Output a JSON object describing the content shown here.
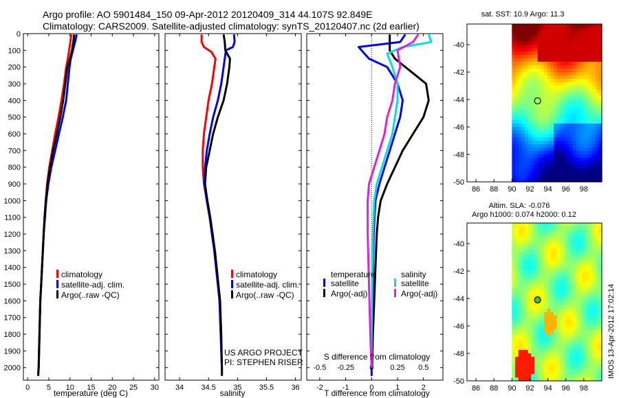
{
  "header": {
    "line1": "Argo profile: AO 5901484_150 09-Apr-2012 20120409_314 44.107S 92.849E",
    "line2": "Climatology: CARS2009. Satellite-adjusted climatology: synTS_20120407.nc (2d earlier)"
  },
  "footer_stamp": "IMOS 13-Apr-2012 17:02:14",
  "project_credit": {
    "line1": "US ARGO PROJECT",
    "line2": "PI: STEPHEN RISER"
  },
  "colors": {
    "climatology": "#ff0000",
    "satellite": "#0000ff",
    "argo": "#000000",
    "salinity_sat": "#00e0e0",
    "salinity_argo": "#e020e0"
  },
  "chart_data": [
    {
      "type": "line",
      "id": "temperature",
      "xlabel": "temperature (deg C)",
      "xlim": [
        -1,
        31
      ],
      "xticks": [
        "0",
        "5",
        "10",
        "15",
        "20",
        "25",
        "30"
      ],
      "xtick_values": [
        0,
        5,
        10,
        15,
        20,
        25,
        30
      ],
      "ylim": [
        2075,
        0
      ],
      "yticks": [
        "0",
        "100",
        "200",
        "300",
        "400",
        "500",
        "600",
        "700",
        "800",
        "900",
        "1000",
        "1100",
        "1200",
        "1300",
        "1400",
        "1500",
        "1600",
        "1700",
        "1800",
        "1900",
        "2000"
      ],
      "ytick_values": [
        0,
        100,
        200,
        300,
        400,
        500,
        600,
        700,
        800,
        900,
        1000,
        1100,
        1200,
        1300,
        1400,
        1500,
        1600,
        1700,
        1800,
        1900,
        2000
      ],
      "legend": [
        "climatology",
        "satellite-adj. clim.",
        "Argo(..raw -QC)"
      ],
      "series": [
        {
          "name": "climatology",
          "color": "#ff0000",
          "points": [
            [
              10.3,
              5
            ],
            [
              10.1,
              50
            ],
            [
              9.8,
              100
            ],
            [
              9.5,
              150
            ],
            [
              9.1,
              200
            ],
            [
              8.6,
              300
            ],
            [
              8.0,
              400
            ],
            [
              7.3,
              500
            ],
            [
              6.5,
              600
            ],
            [
              5.8,
              700
            ],
            [
              5.1,
              800
            ],
            [
              4.6,
              900
            ],
            [
              4.3,
              1000
            ],
            [
              4.0,
              1100
            ],
            [
              3.8,
              1200
            ],
            [
              3.6,
              1300
            ],
            [
              3.4,
              1400
            ],
            [
              3.2,
              1500
            ],
            [
              3.0,
              1600
            ],
            [
              2.8,
              1800
            ],
            [
              2.6,
              2000
            ],
            [
              2.5,
              2050
            ]
          ]
        },
        {
          "name": "satellite-adj. clim.",
          "color": "#0000ff",
          "points": [
            [
              11.6,
              5
            ],
            [
              11.2,
              50
            ],
            [
              10.7,
              100
            ],
            [
              10.2,
              150
            ],
            [
              9.9,
              200
            ],
            [
              9.5,
              300
            ],
            [
              9.1,
              400
            ],
            [
              8.3,
              500
            ],
            [
              7.4,
              600
            ],
            [
              6.5,
              700
            ],
            [
              5.6,
              800
            ],
            [
              4.9,
              900
            ],
            [
              4.4,
              1000
            ],
            [
              4.1,
              1100
            ],
            [
              3.8,
              1200
            ],
            [
              3.6,
              1300
            ],
            [
              3.4,
              1400
            ],
            [
              3.2,
              1500
            ],
            [
              3.0,
              1600
            ],
            [
              2.8,
              1800
            ],
            [
              2.6,
              2000
            ],
            [
              2.5,
              2050
            ]
          ]
        },
        {
          "name": "Argo(..raw -QC)",
          "color": "#000000",
          "points": [
            [
              11.0,
              5
            ],
            [
              10.8,
              50
            ],
            [
              10.5,
              100
            ],
            [
              10.0,
              150
            ],
            [
              9.4,
              200
            ],
            [
              8.9,
              300
            ],
            [
              8.4,
              400
            ],
            [
              7.7,
              500
            ],
            [
              6.9,
              600
            ],
            [
              6.0,
              700
            ],
            [
              5.3,
              800
            ],
            [
              4.7,
              900
            ],
            [
              4.3,
              1000
            ],
            [
              4.0,
              1100
            ],
            [
              3.8,
              1200
            ],
            [
              3.6,
              1300
            ],
            [
              3.4,
              1400
            ],
            [
              3.2,
              1500
            ],
            [
              3.0,
              1600
            ],
            [
              2.8,
              1800
            ],
            [
              2.6,
              2000
            ],
            [
              2.5,
              2040
            ]
          ]
        }
      ]
    },
    {
      "type": "line",
      "id": "salinity",
      "xlabel": "salinity",
      "xlim": [
        33.75,
        36.1
      ],
      "xticks": [
        "34",
        "34.5",
        "35",
        "35.5",
        "36"
      ],
      "xtick_values": [
        34,
        34.5,
        35,
        35.5,
        36
      ],
      "ylim": [
        2075,
        0
      ],
      "legend": [
        "climatology",
        "satellite-adj. clim.",
        "Argo(..raw -QC)"
      ],
      "series": [
        {
          "name": "climatology",
          "color": "#ff0000",
          "points": [
            [
              34.38,
              5
            ],
            [
              34.38,
              50
            ],
            [
              34.42,
              80
            ],
            [
              34.55,
              110
            ],
            [
              34.62,
              150
            ],
            [
              34.6,
              200
            ],
            [
              34.56,
              300
            ],
            [
              34.5,
              400
            ],
            [
              34.46,
              500
            ],
            [
              34.42,
              600
            ],
            [
              34.4,
              700
            ],
            [
              34.4,
              800
            ],
            [
              34.42,
              900
            ],
            [
              34.47,
              1000
            ],
            [
              34.52,
              1100
            ],
            [
              34.56,
              1200
            ],
            [
              34.6,
              1300
            ],
            [
              34.63,
              1400
            ],
            [
              34.66,
              1500
            ],
            [
              34.69,
              1600
            ],
            [
              34.71,
              1800
            ],
            [
              34.73,
              2000
            ],
            [
              34.73,
              2050
            ]
          ]
        },
        {
          "name": "satellite-adj. clim.",
          "color": "#0000ff",
          "points": [
            [
              34.94,
              5
            ],
            [
              34.95,
              50
            ],
            [
              34.92,
              80
            ],
            [
              34.8,
              100
            ],
            [
              34.78,
              150
            ],
            [
              34.76,
              200
            ],
            [
              34.72,
              300
            ],
            [
              34.66,
              400
            ],
            [
              34.58,
              500
            ],
            [
              34.52,
              600
            ],
            [
              34.47,
              700
            ],
            [
              34.44,
              800
            ],
            [
              34.43,
              900
            ],
            [
              34.47,
              1000
            ],
            [
              34.52,
              1100
            ],
            [
              34.56,
              1200
            ],
            [
              34.6,
              1300
            ],
            [
              34.63,
              1400
            ],
            [
              34.66,
              1500
            ],
            [
              34.69,
              1600
            ],
            [
              34.71,
              1800
            ],
            [
              34.73,
              2000
            ],
            [
              34.73,
              2050
            ]
          ]
        },
        {
          "name": "Argo(..raw -QC)",
          "color": "#000000",
          "points": [
            [
              34.76,
              5
            ],
            [
              34.78,
              50
            ],
            [
              34.79,
              100
            ],
            [
              34.87,
              150
            ],
            [
              34.86,
              200
            ],
            [
              34.82,
              300
            ],
            [
              34.76,
              400
            ],
            [
              34.66,
              500
            ],
            [
              34.58,
              600
            ],
            [
              34.52,
              700
            ],
            [
              34.46,
              800
            ],
            [
              34.44,
              900
            ],
            [
              34.48,
              1000
            ],
            [
              34.53,
              1100
            ],
            [
              34.57,
              1200
            ],
            [
              34.61,
              1300
            ],
            [
              34.64,
              1400
            ],
            [
              34.67,
              1500
            ],
            [
              34.7,
              1600
            ],
            [
              34.72,
              1800
            ],
            [
              34.73,
              2000
            ],
            [
              34.73,
              2040
            ]
          ]
        }
      ]
    },
    {
      "type": "line",
      "id": "difference",
      "xlabel": "T difference from climatology",
      "xlabel_top": "S difference from climatology",
      "xlim": [
        -2.5,
        2.75
      ],
      "xticks": [
        "-2",
        "-1",
        "0",
        "1",
        "2"
      ],
      "xtick_values": [
        -2,
        -1,
        0,
        1,
        2
      ],
      "top_ticks": [
        "-0.5",
        "-0.25",
        "0",
        "0.25",
        "0.5"
      ],
      "top_tick_values": [
        -2,
        -1,
        0,
        1,
        2
      ],
      "ylim": [
        2075,
        0
      ],
      "legend_groups": [
        {
          "title": "temperature",
          "items": [
            "satellite",
            "Argo(-adj)"
          ]
        },
        {
          "title": "salinity",
          "items": [
            "satellite",
            "Argo(-adj)"
          ]
        }
      ],
      "series": [
        {
          "name": "temperature satellite",
          "color": "#0000ff",
          "points": [
            [
              1.3,
              5
            ],
            [
              1.1,
              50
            ],
            [
              -0.5,
              80
            ],
            [
              -0.1,
              150
            ],
            [
              0.6,
              200
            ],
            [
              1.0,
              300
            ],
            [
              1.2,
              400
            ],
            [
              1.1,
              500
            ],
            [
              0.9,
              600
            ],
            [
              0.7,
              700
            ],
            [
              0.5,
              800
            ],
            [
              0.3,
              900
            ],
            [
              0.15,
              1000
            ],
            [
              0.08,
              1200
            ],
            [
              0.05,
              1500
            ],
            [
              0.02,
              1800
            ],
            [
              0.0,
              2000
            ],
            [
              0.0,
              2050
            ]
          ]
        },
        {
          "name": "temperature Argo(-adj)",
          "color": "#000000",
          "points": [
            [
              0.7,
              5
            ],
            [
              0.7,
              50
            ],
            [
              0.7,
              100
            ],
            [
              0.9,
              150
            ],
            [
              1.7,
              250
            ],
            [
              2.1,
              300
            ],
            [
              2.2,
              400
            ],
            [
              2.0,
              500
            ],
            [
              1.6,
              600
            ],
            [
              1.2,
              700
            ],
            [
              0.9,
              800
            ],
            [
              0.6,
              900
            ],
            [
              0.35,
              1000
            ],
            [
              0.25,
              1100
            ],
            [
              0.2,
              1200
            ],
            [
              0.15,
              1400
            ],
            [
              0.1,
              1600
            ],
            [
              0.05,
              1800
            ],
            [
              0.02,
              2000
            ]
          ]
        },
        {
          "name": "salinity satellite",
          "color": "#00e0e0",
          "points": [
            [
              2.2,
              5
            ],
            [
              2.3,
              50
            ],
            [
              1.2,
              80
            ],
            [
              0.6,
              120
            ],
            [
              0.8,
              200
            ],
            [
              1.0,
              300
            ],
            [
              1.0,
              400
            ],
            [
              0.9,
              500
            ],
            [
              0.8,
              600
            ],
            [
              0.6,
              700
            ],
            [
              0.4,
              800
            ],
            [
              0.2,
              900
            ],
            [
              0.1,
              1000
            ],
            [
              0.05,
              1200
            ],
            [
              0.02,
              1500
            ],
            [
              0.0,
              1800
            ],
            [
              0.0,
              2000
            ]
          ]
        },
        {
          "name": "salinity Argo(-adj)",
          "color": "#e020e0",
          "points": [
            [
              1.8,
              5
            ],
            [
              1.6,
              50
            ],
            [
              1.0,
              100
            ],
            [
              1.1,
              200
            ],
            [
              0.9,
              300
            ],
            [
              0.8,
              400
            ],
            [
              0.6,
              500
            ],
            [
              0.5,
              600
            ],
            [
              0.3,
              700
            ],
            [
              0.1,
              800
            ],
            [
              -0.1,
              900
            ],
            [
              -0.15,
              1000
            ],
            [
              -0.15,
              1200
            ],
            [
              -0.1,
              1500
            ],
            [
              -0.05,
              1800
            ],
            [
              0.0,
              2000
            ]
          ]
        }
      ]
    },
    {
      "type": "heatmap",
      "id": "sst-map",
      "title": "sat. SST: 10.9 Argo: 11.3",
      "xlim": [
        85,
        100
      ],
      "ylim": [
        -50,
        -38.5
      ],
      "xticks": [
        "86",
        "88",
        "90",
        "92",
        "94",
        "96",
        "98"
      ],
      "xtick_values": [
        86,
        88,
        90,
        92,
        94,
        96,
        98
      ],
      "yticks": [
        "-40",
        "-42",
        "-44",
        "-46",
        "-48",
        "-50"
      ],
      "ytick_values": [
        -40,
        -42,
        -44,
        -46,
        -48,
        -50
      ],
      "data_lon_start": 90,
      "marker": {
        "lon": 92.85,
        "lat": -44.1
      }
    },
    {
      "type": "heatmap",
      "id": "sla-map",
      "title_line1": "Altim. SLA: -0.076",
      "title_line2": "Argo h1000: 0.074 h2000: 0.12",
      "xlim": [
        85,
        100
      ],
      "ylim": [
        -50,
        -38.5
      ],
      "xticks": [
        "86",
        "88",
        "90",
        "92",
        "94",
        "96",
        "98"
      ],
      "xtick_values": [
        86,
        88,
        90,
        92,
        94,
        96,
        98
      ],
      "yticks": [
        "-40",
        "-42",
        "-44",
        "-46",
        "-48",
        "-50"
      ],
      "ytick_values": [
        -40,
        -42,
        -44,
        -46,
        -48,
        -50
      ],
      "data_lon_start": 90,
      "marker": {
        "lon": 92.85,
        "lat": -44.1
      }
    }
  ]
}
